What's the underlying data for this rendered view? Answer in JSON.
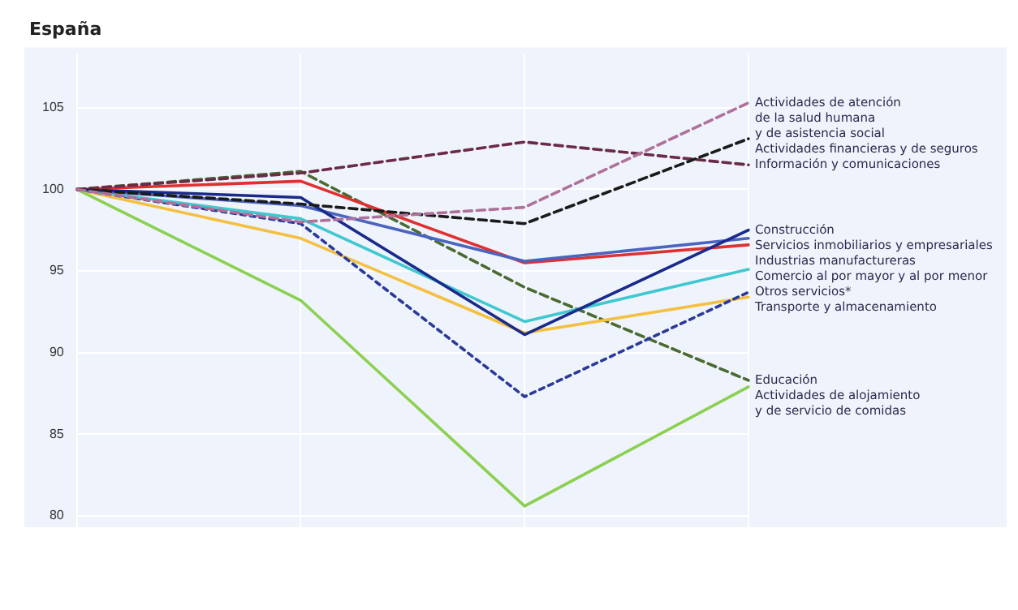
{
  "chart_data": {
    "type": "line",
    "title": "España",
    "categories": [
      null,
      null,
      null,
      null
    ],
    "ylim": [
      79.3,
      108.3
    ],
    "yticks": [
      80,
      85,
      90,
      95,
      100,
      105
    ],
    "grid": true,
    "legend": false,
    "tick_labels": "y",
    "marker": "none",
    "series": [
      {
        "name": "Actividades de atención\nde la salud humana\ny de asistencia social",
        "color": "#b0709a",
        "line_style": "dashed",
        "values": [
          100,
          98.0,
          98.9,
          105.3
        ]
      },
      {
        "name": "Actividades financieras y de seguros",
        "color": "#1a1a1a",
        "line_style": "dashed",
        "values": [
          100,
          99.1,
          97.9,
          103.1
        ]
      },
      {
        "name": "Información y comunicaciones",
        "color": "#6b2a45",
        "line_style": "dashed",
        "values": [
          100,
          101.0,
          102.9,
          101.5
        ]
      },
      {
        "name": "Construcción",
        "color": "#1a2a8a",
        "line_style": "solid",
        "values": [
          100,
          99.5,
          91.1,
          97.5
        ]
      },
      {
        "name": "Servicios inmobiliarios y empresariales",
        "color": "#4a64c0",
        "line_style": "solid",
        "values": [
          100,
          99.0,
          95.6,
          97.0
        ]
      },
      {
        "name": "Industrias manufactureras",
        "color": "#e03030",
        "line_style": "solid",
        "values": [
          100,
          100.5,
          95.5,
          96.6
        ]
      },
      {
        "name": "Comercio al por mayor y al por menor",
        "color": "#40c8d0",
        "line_style": "solid",
        "values": [
          100,
          98.2,
          91.9,
          95.1
        ]
      },
      {
        "name": "Otros servicios*",
        "color": "#2a3a9a",
        "line_style": "dotted",
        "values": [
          100,
          97.9,
          87.3,
          93.7
        ]
      },
      {
        "name": "Transporte y almacenamiento",
        "color": "#f5c040",
        "line_style": "solid",
        "values": [
          100,
          97.0,
          91.2,
          93.4
        ]
      },
      {
        "name": "Educación",
        "color": "#4a6a30",
        "line_style": "dashed",
        "values": [
          100,
          101.1,
          94.0,
          88.3
        ]
      },
      {
        "name": "Actividades de alojamiento\ny de servicio de comidas",
        "color": "#8cd050",
        "line_style": "solid",
        "values": [
          100,
          93.2,
          80.6,
          87.9
        ]
      }
    ]
  }
}
